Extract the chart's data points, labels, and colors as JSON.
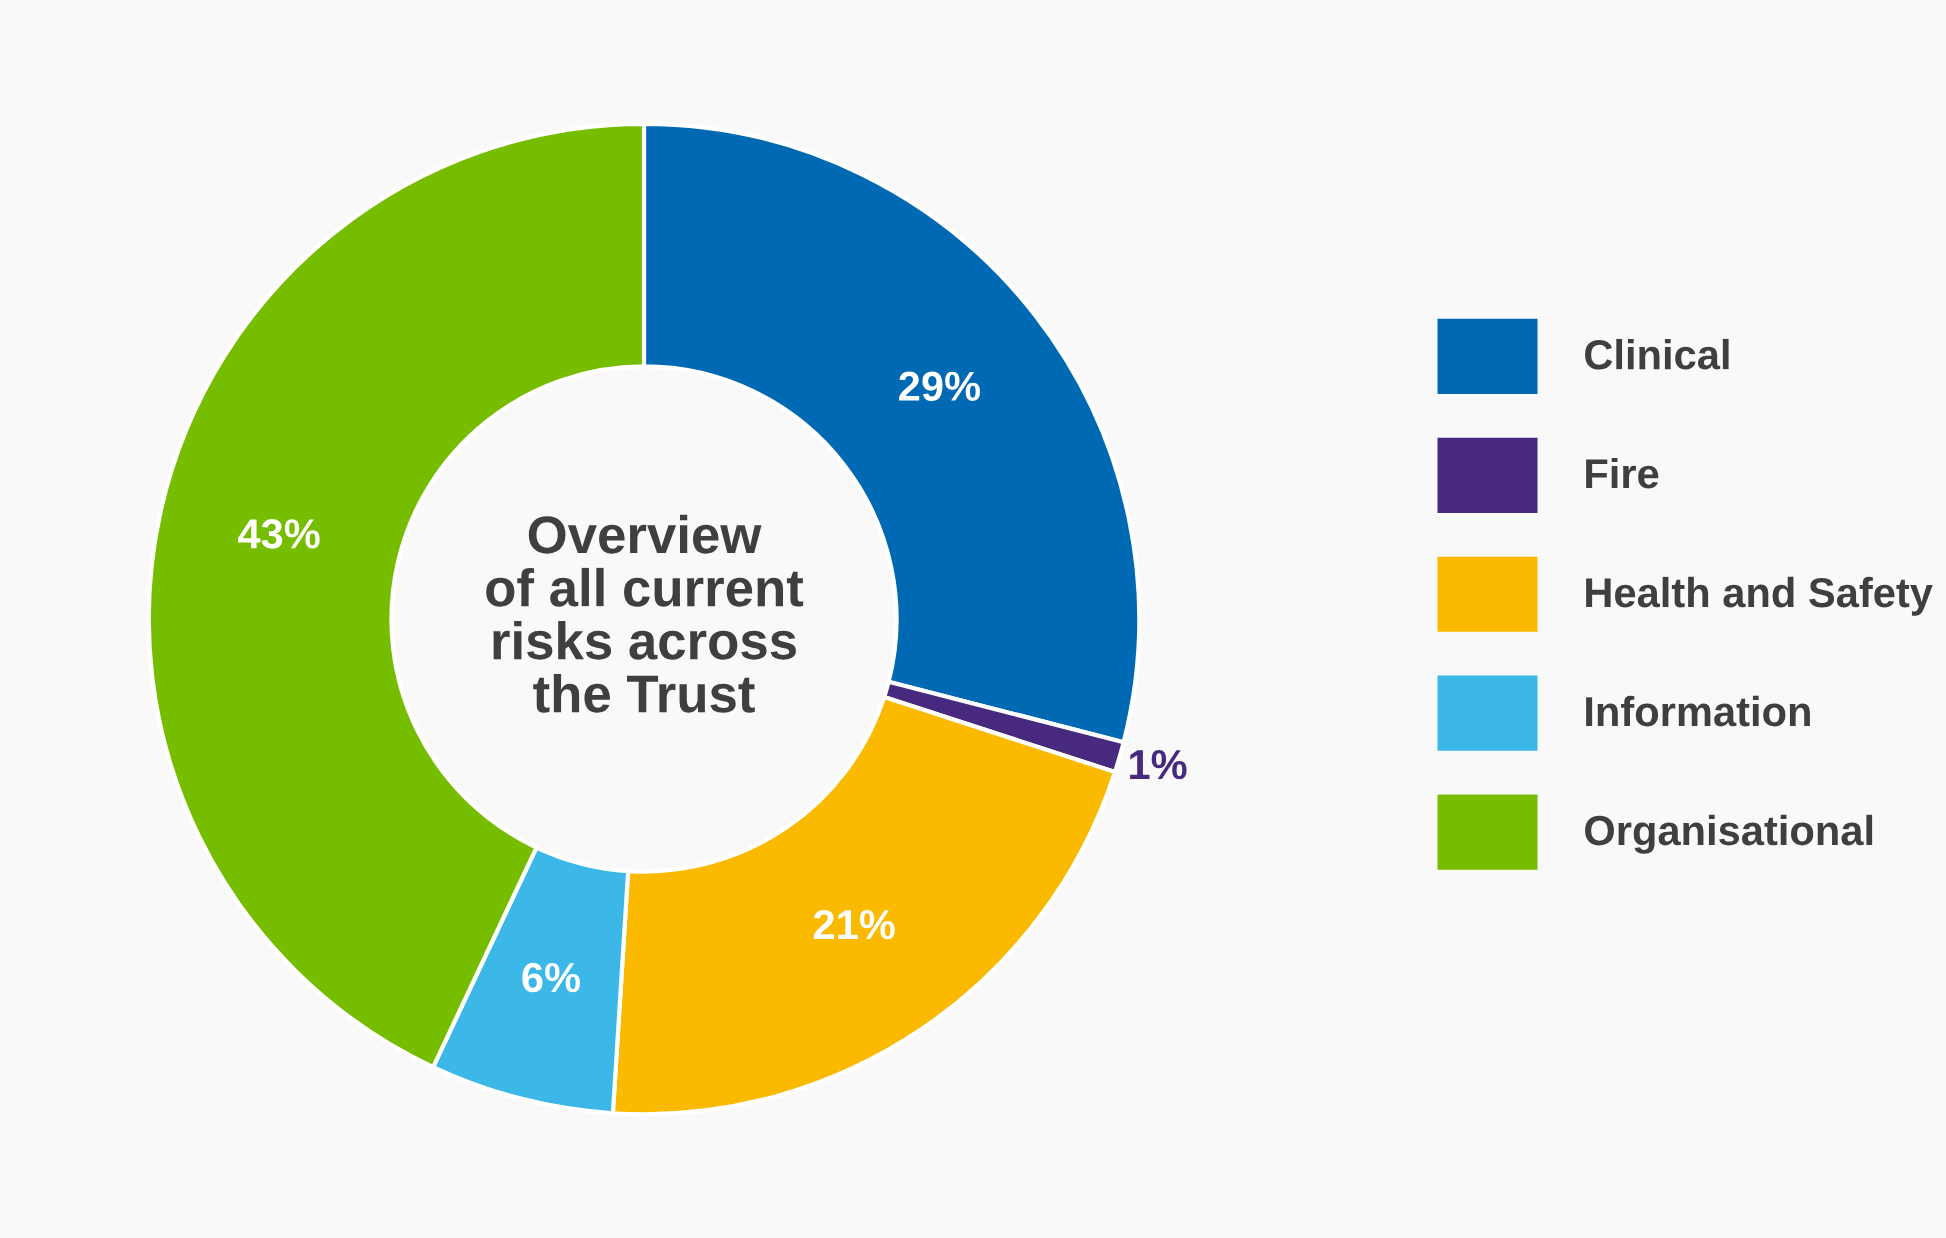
{
  "chart_data": {
    "type": "donut",
    "title": "Overview\nof all current\nrisks across\nthe Trust",
    "categories": [
      "Clinical",
      "Fire",
      "Health and Safety",
      "Information",
      "Organisational"
    ],
    "values": [
      29,
      1,
      21,
      6,
      43
    ],
    "colors": [
      "#0069b4",
      "#472a7f",
      "#fbb900",
      "#3cb8e8",
      "#76bd00"
    ],
    "value_labels": [
      "29%",
      "1%",
      "21%",
      "6%",
      "43%"
    ],
    "legend": "right"
  }
}
